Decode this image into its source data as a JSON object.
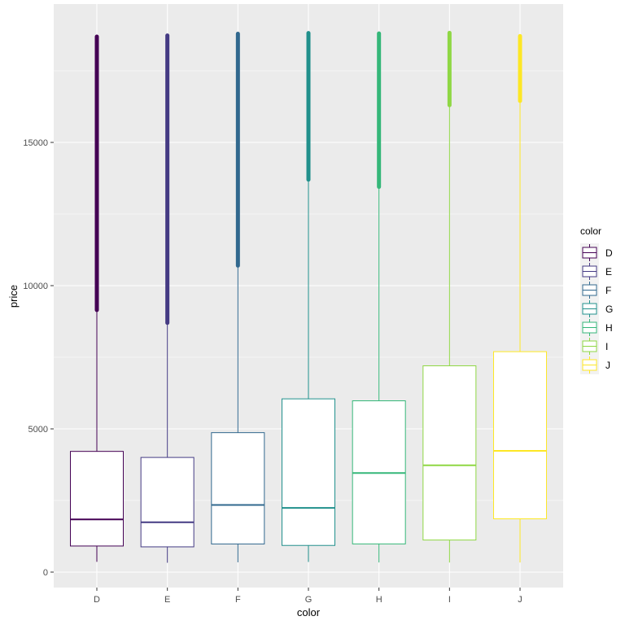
{
  "chart_data": {
    "type": "boxplot",
    "title": "",
    "xlabel": "color",
    "ylabel": "price",
    "ylim": [
      -450,
      19500
    ],
    "yticks": [
      0,
      5000,
      10000,
      15000
    ],
    "ytick_labels": [
      "0",
      "5000",
      "10000",
      "15000"
    ],
    "categories": [
      "D",
      "E",
      "F",
      "G",
      "H",
      "I",
      "J"
    ],
    "legend": {
      "title": "color",
      "entries": [
        "D",
        "E",
        "F",
        "G",
        "H",
        "I",
        "J"
      ],
      "placement": "right"
    },
    "boxes": [
      {
        "name": "D",
        "color": "#440154",
        "min": 357,
        "q1": 911,
        "median": 1838,
        "q3": 4214,
        "whisker_max": 9150,
        "max": 18693
      },
      {
        "name": "E",
        "color": "#443A83",
        "min": 326,
        "q1": 882,
        "median": 1739,
        "q3": 4003,
        "whisker_max": 8700,
        "max": 18731
      },
      {
        "name": "F",
        "color": "#31688E",
        "min": 342,
        "q1": 982,
        "median": 2344,
        "q3": 4868,
        "whisker_max": 10700,
        "max": 18791
      },
      {
        "name": "G",
        "color": "#21908C",
        "min": 354,
        "q1": 931,
        "median": 2242,
        "q3": 6048,
        "whisker_max": 13700,
        "max": 18818
      },
      {
        "name": "H",
        "color": "#35B779",
        "min": 337,
        "q1": 984,
        "median": 3460,
        "q3": 5980,
        "whisker_max": 13450,
        "max": 18803
      },
      {
        "name": "I",
        "color": "#8FD744",
        "min": 334,
        "q1": 1120,
        "median": 3730,
        "q3": 7202,
        "whisker_max": 16300,
        "max": 18823
      },
      {
        "name": "J",
        "color": "#FDE725",
        "min": 335,
        "q1": 1860,
        "median": 4234,
        "q3": 7695,
        "whisker_max": 16450,
        "max": 18710
      }
    ]
  }
}
